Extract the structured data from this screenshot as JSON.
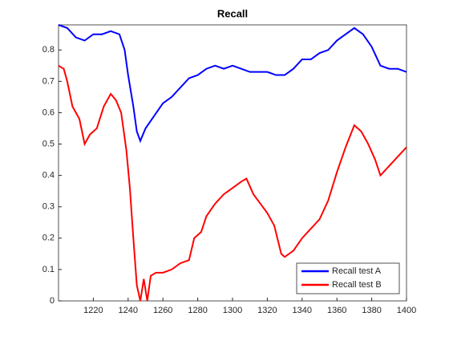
{
  "chart_data": {
    "type": "line",
    "title": "Recall",
    "xlim": [
      1200,
      1400
    ],
    "xticks": [
      1220,
      1240,
      1260,
      1280,
      1300,
      1320,
      1340,
      1360,
      1380,
      1400
    ],
    "ylim": [
      0,
      0.88
    ],
    "yticks": [
      0,
      0.1,
      0.2,
      0.3,
      0.4,
      0.5,
      0.6,
      0.7,
      0.8
    ],
    "legend": "lower right",
    "series": [
      {
        "name": "Recall test A",
        "color": "#0000ff",
        "x": [
          1200,
          1205,
          1210,
          1215,
          1220,
          1225,
          1230,
          1235,
          1238,
          1240,
          1243,
          1245,
          1247,
          1250,
          1255,
          1260,
          1265,
          1270,
          1275,
          1280,
          1285,
          1290,
          1295,
          1300,
          1305,
          1310,
          1315,
          1320,
          1325,
          1330,
          1335,
          1340,
          1345,
          1350,
          1355,
          1360,
          1365,
          1370,
          1375,
          1380,
          1385,
          1390,
          1395,
          1400
        ],
        "values": [
          0.88,
          0.87,
          0.84,
          0.83,
          0.85,
          0.85,
          0.86,
          0.85,
          0.8,
          0.72,
          0.62,
          0.54,
          0.51,
          0.55,
          0.59,
          0.63,
          0.65,
          0.68,
          0.71,
          0.72,
          0.74,
          0.75,
          0.74,
          0.75,
          0.74,
          0.73,
          0.73,
          0.73,
          0.72,
          0.72,
          0.74,
          0.77,
          0.77,
          0.79,
          0.8,
          0.83,
          0.85,
          0.87,
          0.85,
          0.81,
          0.75,
          0.74,
          0.74,
          0.73
        ]
      },
      {
        "name": "Recall test B",
        "color": "#ff0000",
        "x": [
          1200,
          1203,
          1205,
          1208,
          1212,
          1215,
          1218,
          1222,
          1226,
          1230,
          1233,
          1236,
          1239,
          1241,
          1243,
          1245,
          1247,
          1249,
          1251,
          1253,
          1256,
          1260,
          1265,
          1270,
          1275,
          1278,
          1282,
          1285,
          1290,
          1295,
          1300,
          1305,
          1308,
          1312,
          1316,
          1320,
          1324,
          1328,
          1330,
          1335,
          1340,
          1345,
          1350,
          1355,
          1360,
          1365,
          1370,
          1374,
          1378,
          1382,
          1385,
          1390,
          1395,
          1400
        ],
        "values": [
          0.75,
          0.74,
          0.7,
          0.62,
          0.58,
          0.5,
          0.53,
          0.55,
          0.62,
          0.66,
          0.64,
          0.6,
          0.48,
          0.36,
          0.2,
          0.05,
          0.0,
          0.07,
          0.0,
          0.08,
          0.09,
          0.09,
          0.1,
          0.12,
          0.13,
          0.2,
          0.22,
          0.27,
          0.31,
          0.34,
          0.36,
          0.38,
          0.39,
          0.34,
          0.31,
          0.28,
          0.24,
          0.15,
          0.14,
          0.16,
          0.2,
          0.23,
          0.26,
          0.32,
          0.41,
          0.49,
          0.56,
          0.54,
          0.5,
          0.45,
          0.4,
          0.43,
          0.46,
          0.49
        ]
      }
    ]
  }
}
